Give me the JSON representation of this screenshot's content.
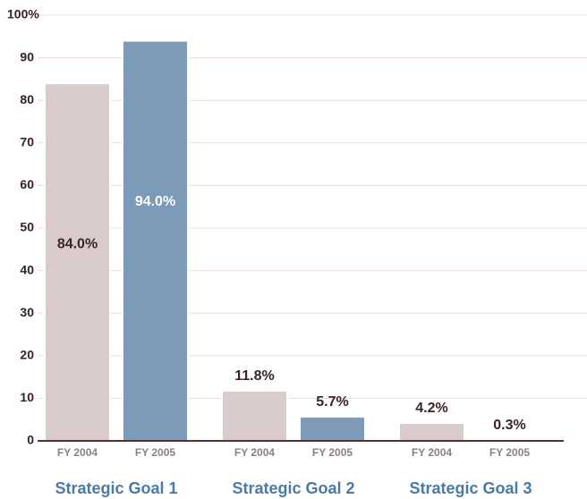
{
  "chart_data": {
    "type": "bar",
    "categories": [
      "Strategic Goal 1",
      "Strategic Goal 2",
      "Strategic Goal 3"
    ],
    "series": [
      {
        "name": "FY 2004",
        "color": "#d9cbcb",
        "values": [
          84.0,
          11.8,
          4.2
        ],
        "value_labels": [
          "84.0%",
          "11.8%",
          "4.2%"
        ]
      },
      {
        "name": "FY 2005",
        "color": "#7b9bb8",
        "values": [
          94.0,
          5.7,
          0.3
        ],
        "value_labels": [
          "94.0%",
          "5.7%",
          "0.3%"
        ]
      }
    ],
    "ylim": [
      0,
      100
    ],
    "yticks": [
      0,
      10,
      20,
      30,
      40,
      50,
      60,
      70,
      80,
      90,
      {
        "value": 100,
        "label": "100%"
      }
    ],
    "grid": true
  }
}
